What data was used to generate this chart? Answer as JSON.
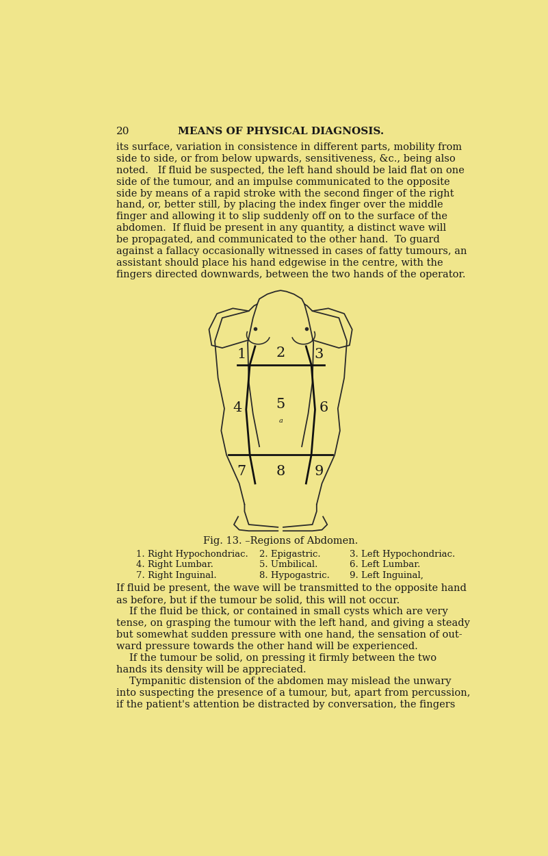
{
  "background_color": "#f0e68c",
  "page_number": "20",
  "header_title": "MEANS OF PHYSICAL DIAGNOSIS.",
  "top_paragraph": "its surface, variation in consistence in different parts, mobility from\nside to side, or from below upwards, sensitiveness, &c., being also\nnoted.   If fluid be suspected, the left hand should be laid flat on one\nside of the tumour, and an impulse communicated to the opposite\nside by means of a rapid stroke with the second finger of the right\nhand, or, better still, by placing the index finger over the middle\nfinger and allowing it to slip suddenly off on to the surface of the\nabdomen.  If fluid be present in any quantity, a distinct wave will\nbe propagated, and communicated to the other hand.  To guard\nagainst a fallacy occasionally witnessed in cases of fatty tumours, an\nassistant should place his hand edgewise in the centre, with the\nfingers directed downwards, between the two hands of the operator.",
  "fig_caption": "Fig. 13. –Regions of Abdomen.",
  "region_labels": [
    [
      "1. Right Hypochondriac.",
      "2. Epigastric.",
      "3. Left Hypochondriac."
    ],
    [
      "4. Right Lumbar.",
      "5. Umbilical.",
      "6. Left Lumbar."
    ],
    [
      "7. Right Inguinal.",
      "8. Hypogastric.",
      "9. Left Inguinal,"
    ]
  ],
  "bottom_paragraph": "If fluid be present, the wave will be transmitted to the opposite hand\nas before, but if the tumour be solid, this will not occur.\n    If the fluid be thick, or contained in small cysts which are very\ntense, on grasping the tumour with the left hand, and giving a steady\nbut somewhat sudden pressure with one hand, the sensation of out-\nward pressure towards the other hand will be experienced.\n    If the tumour be solid, on pressing it firmly between the two\nhands its density will be appreciated.\n    Tympanitic distension of the abdomen may mislead the unwary\ninto suspecting the presence of a tumour, but, apart from percussion,\nif the patient's attention be distracted by conversation, the fingers",
  "text_color": "#1a1a1a",
  "line_color": "#2a2a2a",
  "fig_numbers": [
    "1",
    "2",
    "3",
    "4",
    "5",
    "6",
    "7",
    "8",
    "9"
  ]
}
